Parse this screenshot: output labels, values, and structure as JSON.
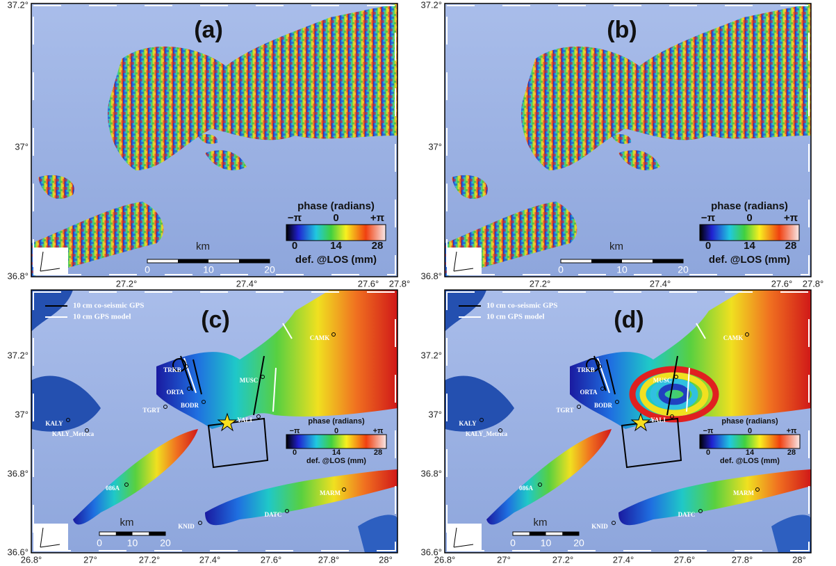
{
  "panels": [
    {
      "label": "(a)",
      "y_ticks": [
        "37.2°",
        "37°",
        "36.8°"
      ],
      "x_ticks": [
        "27.2°",
        "27.4°",
        "27.6°",
        "27.8°"
      ],
      "colorbar": {
        "title": "phase (radians)",
        "phase_ticks": [
          "−π",
          "0",
          "+π"
        ],
        "def_ticks": [
          0,
          14,
          28
        ],
        "caption": "def. @LOS (mm)"
      },
      "scale": {
        "unit": "km",
        "ticks": [
          0,
          10,
          20
        ]
      }
    },
    {
      "label": "(b)",
      "y_ticks": [
        "37.2°",
        "37°",
        "36.8°"
      ],
      "x_ticks": [
        "27.2°",
        "27.4°",
        "27.6°",
        "27.8°"
      ],
      "colorbar": {
        "title": "phase (radians)",
        "phase_ticks": [
          "−π",
          "0",
          "+π"
        ],
        "def_ticks": [
          0,
          14,
          28
        ],
        "caption": "def. @LOS (mm)"
      },
      "scale": {
        "unit": "km",
        "ticks": [
          0,
          10,
          20
        ]
      }
    },
    {
      "label": "(c)",
      "y_ticks": [
        "37.2°",
        "37°",
        "36.8°",
        "36.6°"
      ],
      "x_ticks": [
        "26.8°",
        "27°",
        "27.2°",
        "27.4°",
        "27.6°",
        "27.8°",
        "28°"
      ],
      "colorbar": {
        "title": "phase (radians)",
        "phase_ticks": [
          "−π",
          "0",
          "+π"
        ],
        "def_ticks": [
          0,
          14,
          28
        ],
        "caption": "def. @LOS (mm)"
      },
      "scale": {
        "unit": "km",
        "ticks": [
          0,
          10,
          20
        ]
      },
      "legend": [
        "10 cm co-seismic GPS",
        "10 cm GPS model"
      ],
      "stations": [
        "CAMK",
        "TRKB",
        "MUSC",
        "ORTA",
        "BODR",
        "TGRT",
        "KALY",
        "KALY_Metrica",
        "YALI",
        "086A",
        "MARM",
        "DATC",
        "KNID"
      ]
    },
    {
      "label": "(d)",
      "y_ticks": [
        "37.2°",
        "37°",
        "36.8°",
        "36.6°"
      ],
      "x_ticks": [
        "26.8°",
        "27°",
        "27.2°",
        "27.4°",
        "27.6°",
        "27.8°",
        "28°"
      ],
      "colorbar": {
        "title": "phase (radians)",
        "phase_ticks": [
          "−π",
          "0",
          "+π"
        ],
        "def_ticks": [
          0,
          14,
          28
        ],
        "caption": "def. @LOS (mm)"
      },
      "scale": {
        "unit": "km",
        "ticks": [
          0,
          10,
          20
        ]
      },
      "legend": [
        "10 cm co-seismic GPS",
        "10 cm GPS model"
      ],
      "stations": [
        "CAMK",
        "TRKB",
        "MUSC",
        "ORTA",
        "BODR",
        "TGRT",
        "KALY",
        "KALY_Metrica",
        "YALI",
        "086A",
        "MARM",
        "DATC",
        "KNID"
      ]
    }
  ]
}
